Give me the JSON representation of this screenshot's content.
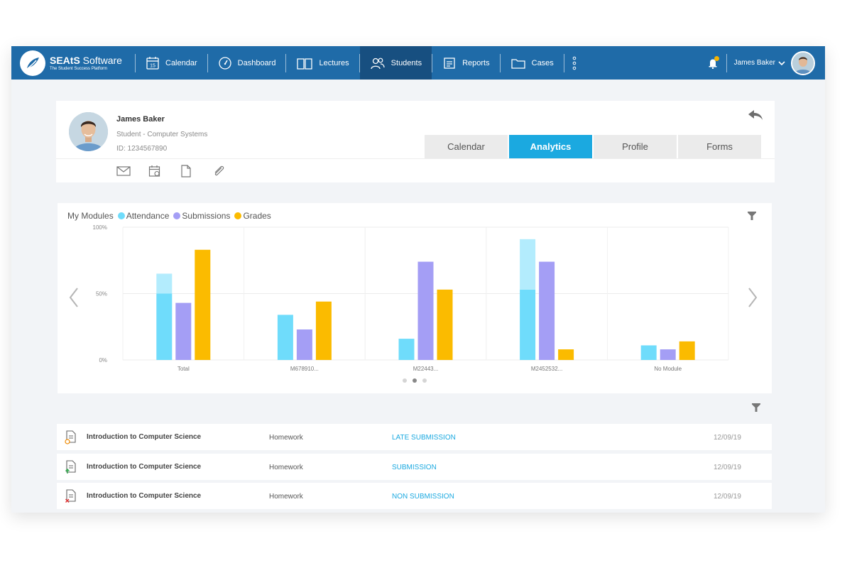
{
  "app": {
    "brand_bold": "SEAtS",
    "brand_rest": " Software",
    "tagline": "The Student Success Platform"
  },
  "nav": {
    "items": [
      {
        "label": "Calendar",
        "icon": "calendar-15-icon",
        "active": false
      },
      {
        "label": "Dashboard",
        "icon": "gauge-icon",
        "active": false
      },
      {
        "label": "Lectures",
        "icon": "book-icon",
        "active": false
      },
      {
        "label": "Students",
        "icon": "users-icon",
        "active": true
      },
      {
        "label": "Reports",
        "icon": "report-icon",
        "active": false
      },
      {
        "label": "Cases",
        "icon": "folder-icon",
        "active": false
      }
    ],
    "calendar_day": "15",
    "user_name": "James Baker"
  },
  "profile": {
    "name": "James Baker",
    "subtitle": "Student - Computer Systems",
    "id_line": "ID: 1234567890",
    "tabs": [
      {
        "label": "Calendar",
        "active": false
      },
      {
        "label": "Analytics",
        "active": true
      },
      {
        "label": "Profile",
        "active": false
      },
      {
        "label": "Forms",
        "active": false
      }
    ]
  },
  "chart_data": {
    "type": "bar",
    "title": "My Modules",
    "categories": [
      "Total",
      "M678910...",
      "M22443...",
      "M2452532...",
      "No Module"
    ],
    "series": [
      {
        "name": "Attendance",
        "color": "#6fdcfb",
        "values": [
          50,
          34,
          16,
          53,
          11
        ],
        "secondary_values": [
          15,
          0,
          0,
          38,
          0
        ],
        "secondary_color": "#b3ecfd"
      },
      {
        "name": "Submissions",
        "color": "#a49ef5",
        "values": [
          43,
          23,
          74,
          74,
          8
        ]
      },
      {
        "name": "Grades",
        "color": "#fbbb00",
        "values": [
          83,
          44,
          53,
          8,
          14
        ]
      }
    ],
    "y_ticks": [
      "100%",
      "50%",
      "0%"
    ],
    "ylim": [
      0,
      100
    ],
    "grid": true,
    "pager": {
      "count": 3,
      "active": 1
    }
  },
  "colors": {
    "navbar": "#1f6ba8",
    "nav_active": "#174f80",
    "accent": "#1ba9e0"
  },
  "list": {
    "rows": [
      {
        "course": "Introduction to Computer Science",
        "type": "Homework",
        "status": "LATE SUBMISSION",
        "date": "12/09/19",
        "icon": "document-clock-icon"
      },
      {
        "course": "Introduction to Computer Science",
        "type": "Homework",
        "status": "SUBMISSION",
        "date": "12/09/19",
        "icon": "document-upload-icon"
      },
      {
        "course": "Introduction to Computer Science",
        "type": "Homework",
        "status": "NON SUBMISSION",
        "date": "12/09/19",
        "icon": "document-x-icon"
      }
    ]
  }
}
